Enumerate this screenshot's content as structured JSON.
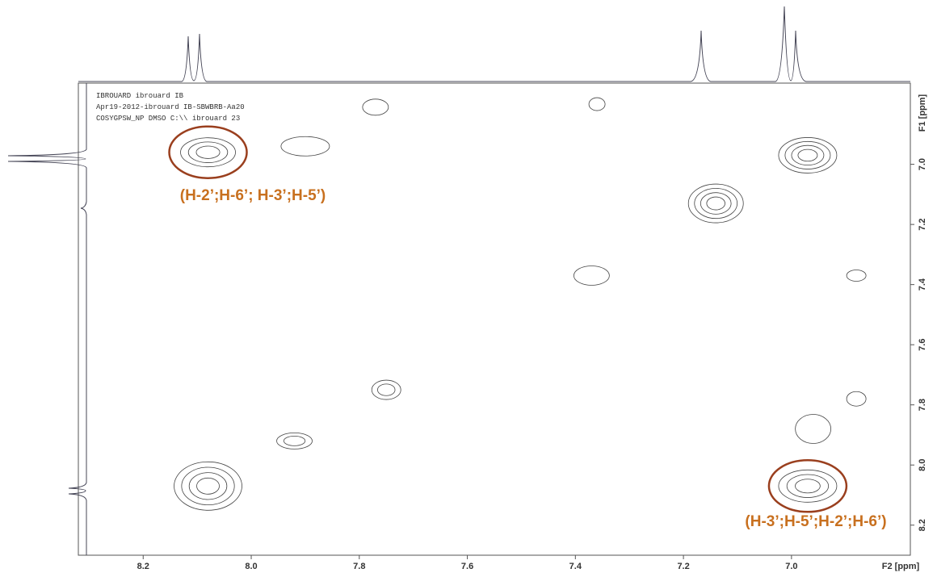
{
  "chart_data": {
    "type": "contour",
    "header": [
      "IBROUARD ibrouard IB",
      "Apr19-2012-ibrouard IB-SBWBRB-Aa20",
      "COSYGPSW_NP DMSO C:\\\\ ibrouard 23"
    ],
    "xlabel": "F2 [ppm]",
    "ylabel": "F1 [ppm]",
    "xlim": [
      8.32,
      6.78
    ],
    "ylim": [
      6.73,
      8.3
    ],
    "xticks": [
      8.2,
      {
        "value": 8,
        "label": "8.0"
      },
      7.8,
      7.6,
      7.4,
      7.2,
      {
        "value": 7,
        "label": "7.0"
      }
    ],
    "yticks": [
      {
        "value": 7,
        "label": "7.0"
      },
      7.2,
      7.4,
      7.6,
      7.8,
      {
        "value": 8,
        "label": "8.0"
      },
      8.2
    ],
    "color": "#444444",
    "peaks": {
      "x": [
        8.08,
        6.97,
        8.08,
        6.97,
        7.14,
        7.75,
        7.92,
        7.37,
        7.9,
        7.77,
        7.36,
        6.96,
        6.88,
        6.88
      ],
      "y": [
        6.96,
        8.07,
        8.07,
        6.97,
        7.13,
        7.75,
        7.92,
        7.37,
        6.94,
        6.81,
        6.8,
        7.88,
        7.78,
        7.37
      ]
    },
    "annotations": [
      "(H-2’;H-6’; H-3’;H-5’)",
      "(H-3’;H-5’;H-2’;H-6’)"
    ],
    "annotation_color": "#c8701f",
    "circle_color": "#9a3f1e"
  }
}
